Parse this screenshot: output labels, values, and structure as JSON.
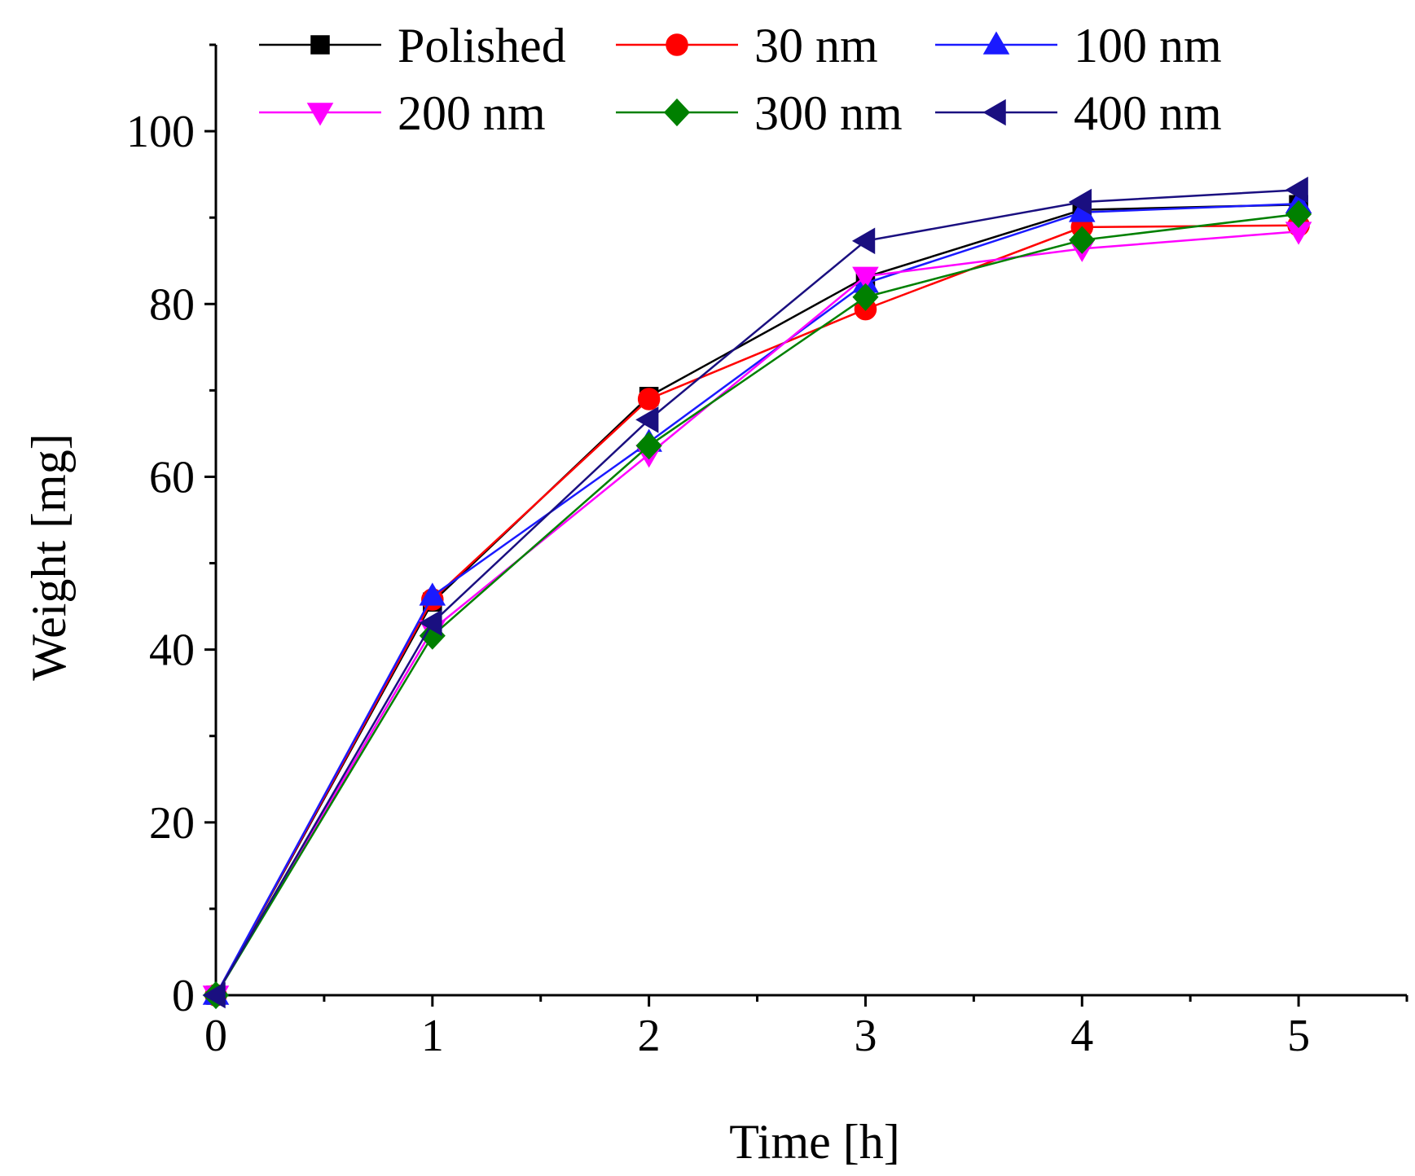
{
  "chart_data": {
    "type": "line",
    "title": "",
    "xlabel": "Time [h]",
    "ylabel": "Weight [mg]",
    "xlim": [
      0,
      5.5
    ],
    "ylim": [
      0,
      110
    ],
    "x_major_ticks": [
      0,
      1,
      2,
      3,
      4,
      5
    ],
    "x_minor_ticks": [
      0.5,
      1.5,
      2.5,
      3.5,
      4.5,
      5.5
    ],
    "y_major_ticks": [
      0,
      20,
      40,
      60,
      80,
      100
    ],
    "y_minor_ticks": [
      10,
      30,
      50,
      70,
      90,
      110
    ],
    "grid": false,
    "legend_position": "top",
    "x": [
      0,
      1,
      2,
      3,
      4,
      5
    ],
    "series": [
      {
        "name": "Polished",
        "color": "#000000",
        "marker": "square",
        "values": [
          0,
          45.5,
          69.3,
          83.1,
          90.9,
          91.5
        ]
      },
      {
        "name": "30 nm",
        "color": "#ff0000",
        "marker": "circle",
        "values": [
          0,
          45.8,
          69.0,
          79.4,
          88.9,
          89.1
        ]
      },
      {
        "name": "100 nm",
        "color": "#1a1aff",
        "marker": "triangle-up",
        "values": [
          0,
          46.2,
          64.0,
          82.4,
          90.6,
          91.6
        ]
      },
      {
        "name": "200 nm",
        "color": "#ff00ff",
        "marker": "triangle-down",
        "values": [
          0,
          42.3,
          62.6,
          83.2,
          86.4,
          88.4
        ]
      },
      {
        "name": "300 nm",
        "color": "#008000",
        "marker": "diamond",
        "values": [
          0,
          41.6,
          63.6,
          80.8,
          87.4,
          90.4
        ]
      },
      {
        "name": "400 nm",
        "color": "#1a0f80",
        "marker": "triangle-left",
        "values": [
          0,
          43.1,
          66.6,
          87.3,
          91.8,
          93.2
        ]
      }
    ]
  }
}
